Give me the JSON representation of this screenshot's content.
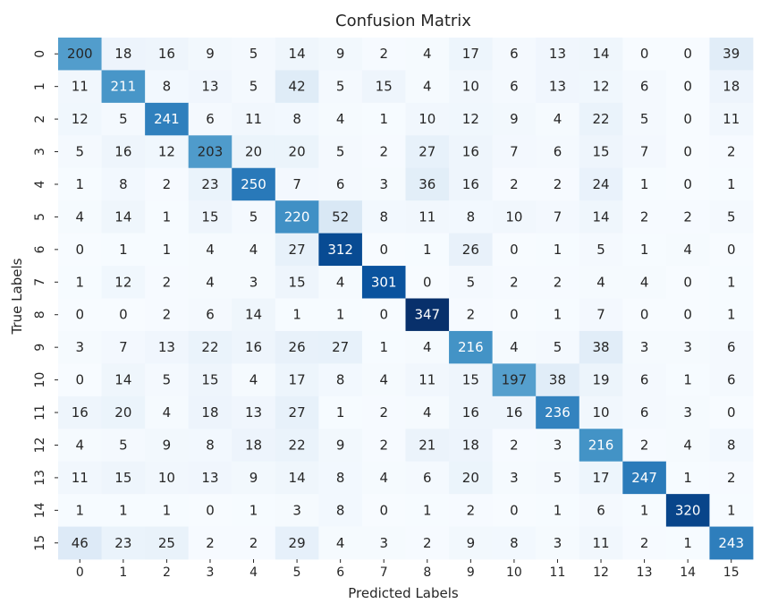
{
  "chart_data": {
    "type": "heatmap",
    "title": "Confusion Matrix",
    "xlabel": "Predicted Labels",
    "ylabel": "True Labels",
    "x_categories": [
      "0",
      "1",
      "2",
      "3",
      "4",
      "5",
      "6",
      "7",
      "8",
      "9",
      "10",
      "11",
      "12",
      "13",
      "14",
      "15"
    ],
    "y_categories": [
      "0",
      "1",
      "2",
      "3",
      "4",
      "5",
      "6",
      "7",
      "8",
      "9",
      "10",
      "11",
      "12",
      "13",
      "14",
      "15"
    ],
    "color_scale": {
      "low": "#f7fbff",
      "high": "#08306b",
      "colormap": "Blues"
    },
    "text_colors": {
      "dark": "#262626",
      "light": "#ffffff"
    },
    "colorbar": false,
    "matrix": [
      [
        200,
        18,
        16,
        9,
        5,
        14,
        9,
        2,
        4,
        17,
        6,
        13,
        14,
        0,
        0,
        39
      ],
      [
        11,
        211,
        8,
        13,
        5,
        42,
        5,
        15,
        4,
        10,
        6,
        13,
        12,
        6,
        0,
        18
      ],
      [
        12,
        5,
        241,
        6,
        11,
        8,
        4,
        1,
        10,
        12,
        9,
        4,
        22,
        5,
        0,
        11
      ],
      [
        5,
        16,
        12,
        203,
        20,
        20,
        5,
        2,
        27,
        16,
        7,
        6,
        15,
        7,
        0,
        2
      ],
      [
        1,
        8,
        2,
        23,
        250,
        7,
        6,
        3,
        36,
        16,
        2,
        2,
        24,
        1,
        0,
        1
      ],
      [
        4,
        14,
        1,
        15,
        5,
        220,
        52,
        8,
        11,
        8,
        10,
        7,
        14,
        2,
        2,
        5
      ],
      [
        0,
        1,
        1,
        4,
        4,
        27,
        312,
        0,
        1,
        26,
        0,
        1,
        5,
        1,
        4,
        0
      ],
      [
        1,
        12,
        2,
        4,
        3,
        15,
        4,
        301,
        0,
        5,
        2,
        2,
        4,
        4,
        0,
        1
      ],
      [
        0,
        0,
        2,
        6,
        14,
        1,
        1,
        0,
        347,
        2,
        0,
        1,
        7,
        0,
        0,
        1
      ],
      [
        3,
        7,
        13,
        22,
        16,
        26,
        27,
        1,
        4,
        216,
        4,
        5,
        38,
        3,
        3,
        6
      ],
      [
        0,
        14,
        5,
        15,
        4,
        17,
        8,
        4,
        11,
        15,
        197,
        38,
        19,
        6,
        1,
        6
      ],
      [
        16,
        20,
        4,
        18,
        13,
        27,
        1,
        2,
        4,
        16,
        16,
        236,
        10,
        6,
        3,
        0
      ],
      [
        4,
        5,
        9,
        8,
        18,
        22,
        9,
        2,
        21,
        18,
        2,
        3,
        216,
        2,
        4,
        8
      ],
      [
        11,
        15,
        10,
        13,
        9,
        14,
        8,
        4,
        6,
        20,
        3,
        5,
        17,
        247,
        1,
        2
      ],
      [
        1,
        1,
        1,
        0,
        1,
        3,
        8,
        0,
        1,
        2,
        0,
        1,
        6,
        1,
        320,
        1
      ],
      [
        46,
        23,
        25,
        2,
        2,
        29,
        4,
        3,
        2,
        9,
        8,
        3,
        11,
        2,
        1,
        243
      ]
    ]
  }
}
